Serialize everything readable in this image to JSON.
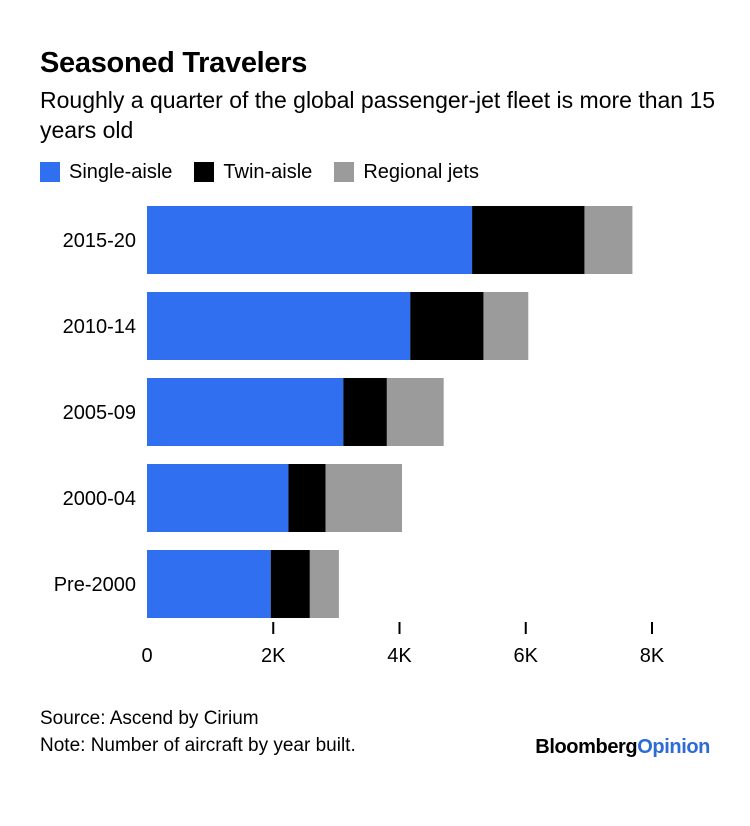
{
  "header": {
    "title": "Seasoned Travelers",
    "subtitle": "Roughly a quarter of the global passenger-jet fleet is more than 15 years old"
  },
  "legend": [
    {
      "label": "Single-aisle",
      "color": "#2f6ff0"
    },
    {
      "label": "Twin-aisle",
      "color": "#000000"
    },
    {
      "label": "Regional jets",
      "color": "#9b9b9b"
    }
  ],
  "chart_data": {
    "type": "bar",
    "orientation": "horizontal",
    "stacked": true,
    "title": "Seasoned Travelers",
    "subtitle": "Roughly a quarter of the global passenger-jet fleet is more than 15 years old",
    "categories": [
      "2015-20",
      "2010-14",
      "2005-09",
      "2000-04",
      "Pre-2000"
    ],
    "series": [
      {
        "name": "Single-aisle",
        "color": "#2f6ff0",
        "values": [
          5150,
          4170,
          3110,
          2240,
          1960
        ]
      },
      {
        "name": "Twin-aisle",
        "color": "#000000",
        "values": [
          1780,
          1160,
          690,
          590,
          620
        ]
      },
      {
        "name": "Regional jets",
        "color": "#9b9b9b",
        "values": [
          760,
          710,
          900,
          1210,
          460
        ]
      }
    ],
    "xlim": [
      0,
      8000
    ],
    "xticks": [
      0,
      2000,
      4000,
      6000,
      8000
    ],
    "xtick_labels": [
      "0",
      "2K",
      "4K",
      "6K",
      "8K"
    ],
    "xlabel": "",
    "ylabel": "",
    "grid": false,
    "legend_position": "top-left"
  },
  "footer": {
    "source": "Source: Ascend by Cirium",
    "note": "Note: Number of aircraft by year built.",
    "brand_main": "Bloomberg",
    "brand_accent": "Opinion"
  }
}
